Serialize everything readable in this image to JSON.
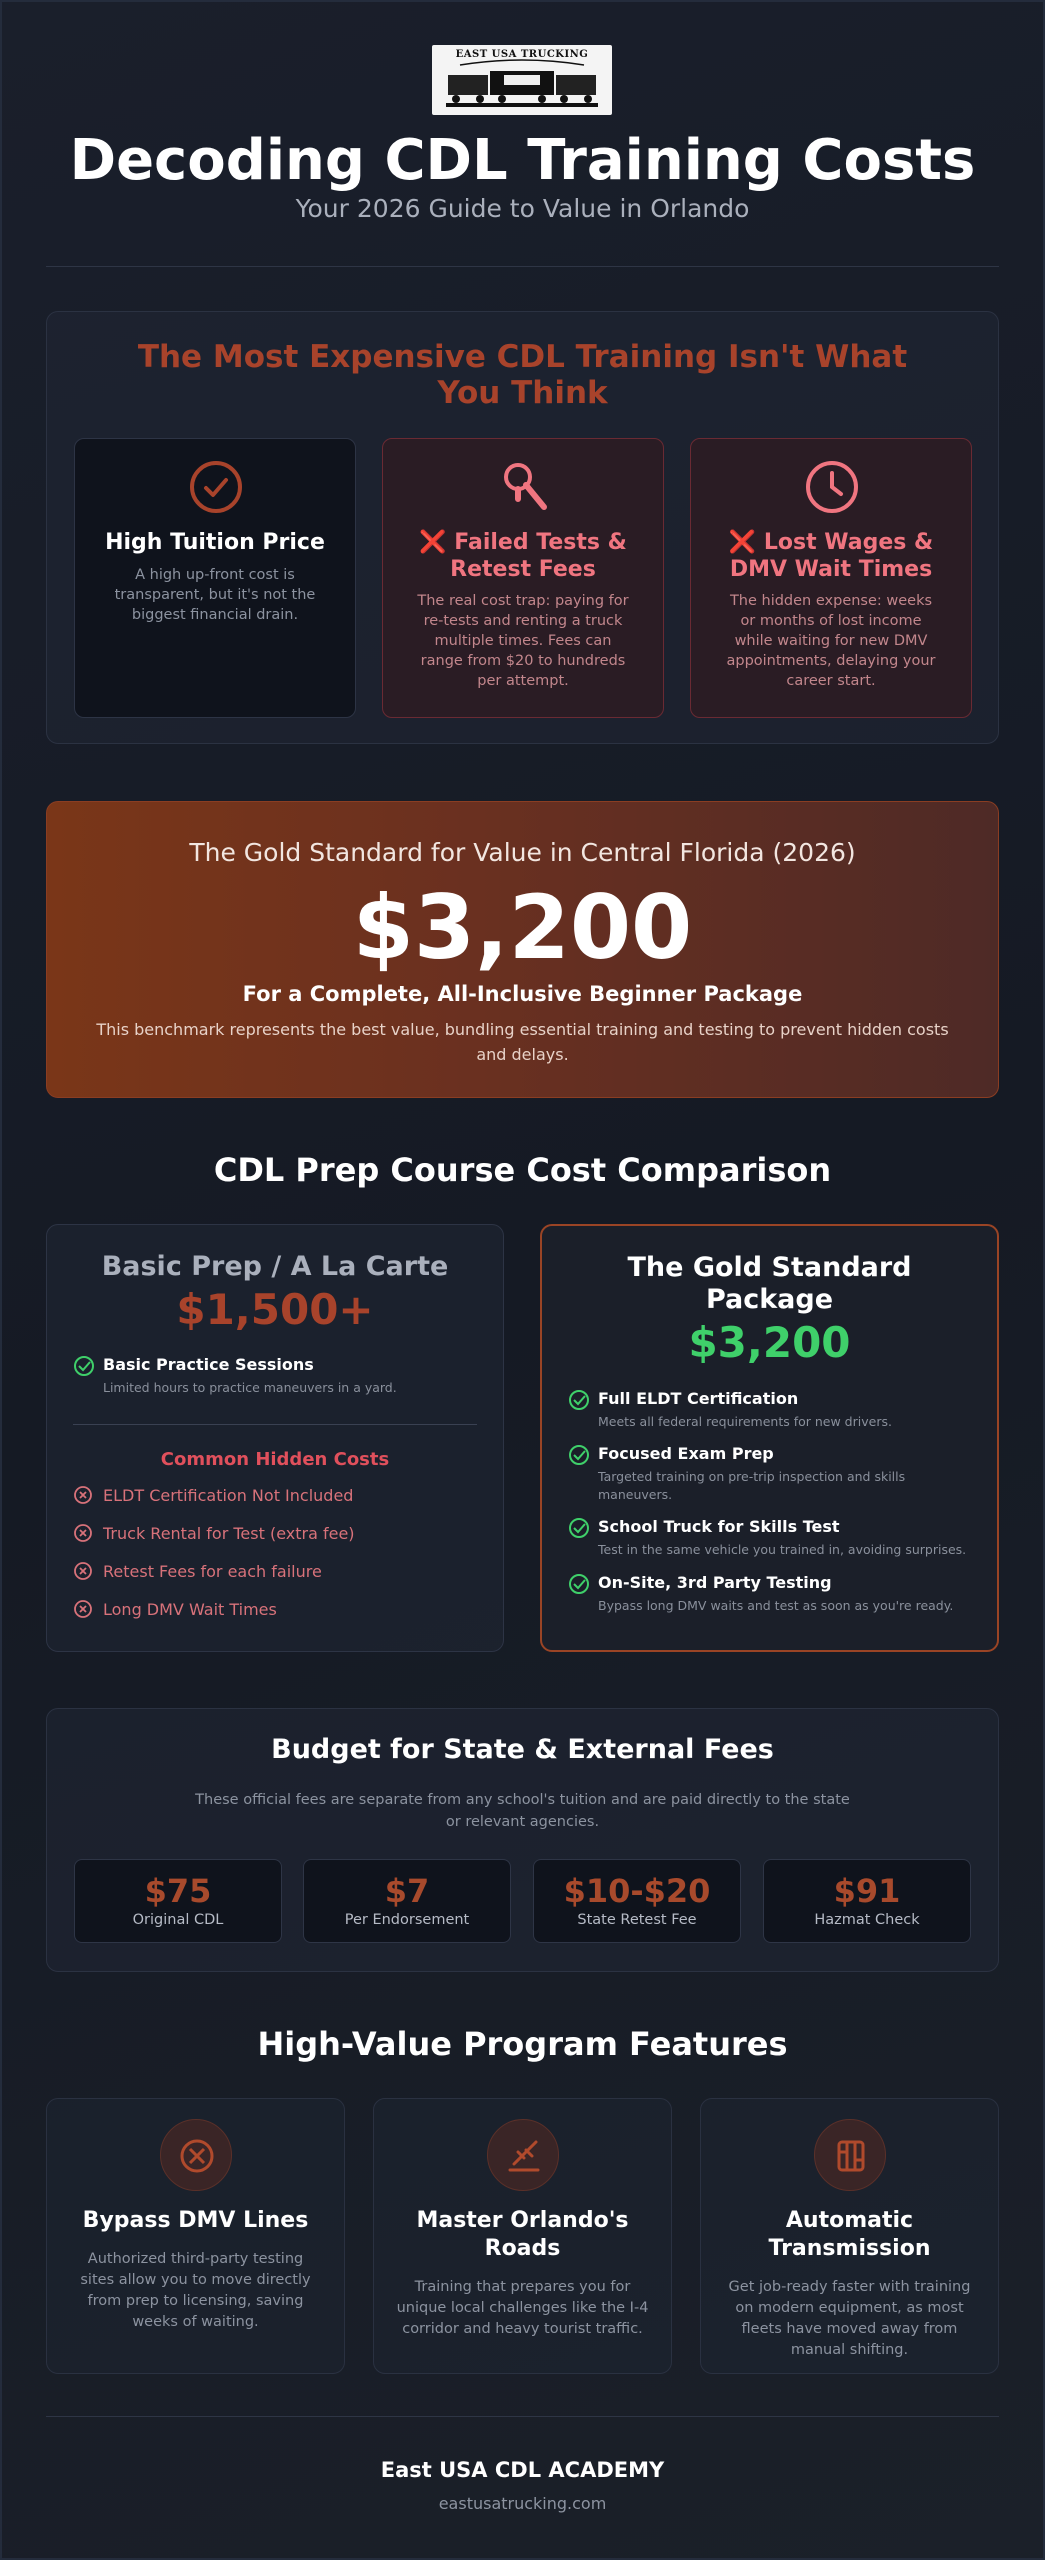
{
  "header": {
    "logo_text": "EAST USA TRUCKING",
    "title": "Decoding CDL Training Costs",
    "subtitle": "Your 2026 Guide to Value in Orlando"
  },
  "expense_section": {
    "heading": "The Most Expensive CDL Training Isn't What You Think",
    "cards": [
      {
        "icon": "check-circle-icon",
        "title": "High Tuition Price",
        "text": "A high up-front cost is transparent, but it's not the biggest financial drain."
      },
      {
        "icon": "search-icon",
        "title": "❌ Failed Tests & Retest Fees",
        "text": "The real cost trap: paying for re-tests and renting a truck multiple times. Fees can range from $20 to hundreds per attempt."
      },
      {
        "icon": "clock-icon",
        "title": "❌ Lost Wages & DMV Wait Times",
        "text": "The hidden expense: weeks or months of lost income while waiting for new DMV appointments, delaying your career start."
      }
    ]
  },
  "hero": {
    "kicker": "The Gold Standard for Value in Central Florida (2026)",
    "price": "$3,200",
    "label": "For a Complete, All-Inclusive Beginner Package",
    "description": "This benchmark represents the best value, bundling essential training and testing to prevent hidden costs and delays."
  },
  "comparison": {
    "heading": "CDL Prep Course Cost Comparison",
    "basic": {
      "title": "Basic Prep / A La Carte",
      "price": "$1,500+",
      "features": [
        {
          "title": "Basic Practice Sessions",
          "desc": "Limited hours to practice maneuvers in a yard."
        }
      ],
      "hidden_title": "Common Hidden Costs",
      "hidden_costs": [
        "ELDT Certification Not Included",
        "Truck Rental for Test (extra fee)",
        "Retest Fees for each failure",
        "Long DMV Wait Times"
      ]
    },
    "gold": {
      "title": "The Gold Standard Package",
      "price": "$3,200",
      "features": [
        {
          "title": "Full ELDT Certification",
          "desc": "Meets all federal requirements for new drivers."
        },
        {
          "title": "Focused Exam Prep",
          "desc": "Targeted training on pre-trip inspection and skills maneuvers."
        },
        {
          "title": "School Truck for Skills Test",
          "desc": "Test in the same vehicle you trained in, avoiding surprises."
        },
        {
          "title": "On-Site, 3rd Party Testing",
          "desc": "Bypass long DMV waits and test as soon as you're ready."
        }
      ]
    }
  },
  "fees": {
    "heading": "Budget for State & External Fees",
    "description": "These official fees are separate from any school's tuition and are paid directly to the state or relevant agencies.",
    "items": [
      {
        "value": "$75",
        "label": "Original CDL"
      },
      {
        "value": "$7",
        "label": "Per Endorsement"
      },
      {
        "value": "$10-$20",
        "label": "State Retest Fee"
      },
      {
        "value": "$91",
        "label": "Hazmat Check"
      }
    ]
  },
  "features": {
    "heading": "High-Value Program Features",
    "items": [
      {
        "icon": "no-line-icon",
        "title": "Bypass DMV Lines",
        "text": "Authorized third-party testing sites allow you to move directly from prep to licensing, saving weeks of waiting."
      },
      {
        "icon": "road-icon",
        "title": "Master Orlando's Roads",
        "text": "Training that prepares you for unique local challenges like the I-4 corridor and heavy tourist traffic."
      },
      {
        "icon": "gearshift-icon",
        "title": "Automatic Transmission",
        "text": "Get job-ready faster with training on modern equipment, as most fleets have moved away from manual shifting."
      }
    ]
  },
  "footer": {
    "name": "East USA CDL ACADEMY",
    "url": "eastusatrucking.com"
  },
  "colors": {
    "accent_rust": "#a8432b",
    "warn_red": "#f07580",
    "success_green": "#3fd06a",
    "background": "#161b25"
  }
}
